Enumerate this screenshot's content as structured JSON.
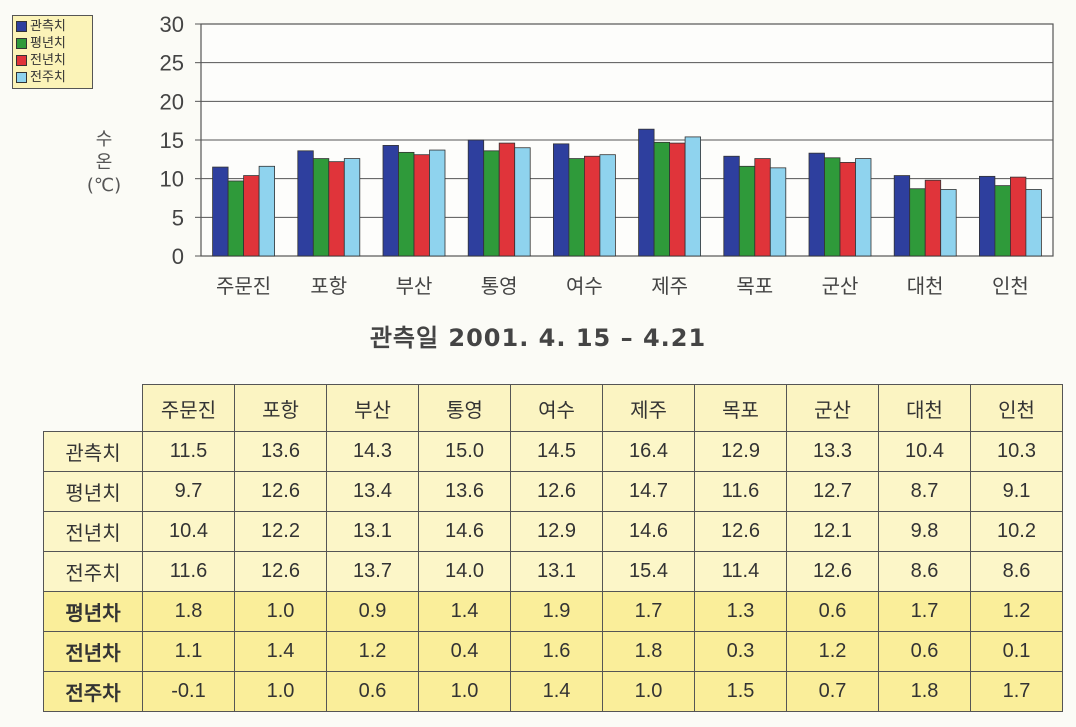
{
  "chart_data": {
    "type": "bar",
    "title": "관측일 2001. 4. 15  –  4.21",
    "ylabel": [
      "수",
      "온",
      "(℃)"
    ],
    "xlabel": "",
    "ylim": [
      0,
      30
    ],
    "yticks": [
      0,
      5,
      10,
      15,
      20,
      25,
      30
    ],
    "grid": true,
    "legend_position": "top-left",
    "categories": [
      "주문진",
      "포항",
      "부산",
      "통영",
      "여수",
      "제주",
      "목포",
      "군산",
      "대천",
      "인천"
    ],
    "series": [
      {
        "name": "관측치",
        "color": "#2e3f9e",
        "values": [
          11.5,
          13.6,
          14.3,
          15.0,
          14.5,
          16.4,
          12.9,
          13.3,
          10.4,
          10.3
        ]
      },
      {
        "name": "평년치",
        "color": "#2f9a3a",
        "values": [
          9.7,
          12.6,
          13.4,
          13.6,
          12.6,
          14.7,
          11.6,
          12.7,
          8.7,
          9.1
        ]
      },
      {
        "name": "전년치",
        "color": "#e0343a",
        "values": [
          10.4,
          12.2,
          13.1,
          14.6,
          12.9,
          14.6,
          12.6,
          12.1,
          9.8,
          10.2
        ]
      },
      {
        "name": "전주치",
        "color": "#8fd3ee",
        "values": [
          11.6,
          12.6,
          13.7,
          14.0,
          13.1,
          15.4,
          11.4,
          12.6,
          8.6,
          8.6
        ]
      }
    ]
  },
  "table": {
    "columns": [
      "주문진",
      "포항",
      "부산",
      "통영",
      "여수",
      "제주",
      "목포",
      "군산",
      "대천",
      "인천"
    ],
    "rows": [
      {
        "label": "관측치",
        "kind": "obs",
        "values": [
          "11.5",
          "13.6",
          "14.3",
          "15.0",
          "14.5",
          "16.4",
          "12.9",
          "13.3",
          "10.4",
          "10.3"
        ]
      },
      {
        "label": "평년치",
        "kind": "obs",
        "values": [
          "9.7",
          "12.6",
          "13.4",
          "13.6",
          "12.6",
          "14.7",
          "11.6",
          "12.7",
          "8.7",
          "9.1"
        ]
      },
      {
        "label": "전년치",
        "kind": "obs",
        "values": [
          "10.4",
          "12.2",
          "13.1",
          "14.6",
          "12.9",
          "14.6",
          "12.6",
          "12.1",
          "9.8",
          "10.2"
        ]
      },
      {
        "label": "전주치",
        "kind": "obs",
        "values": [
          "11.6",
          "12.6",
          "13.7",
          "14.0",
          "13.1",
          "15.4",
          "11.4",
          "12.6",
          "8.6",
          "8.6"
        ]
      },
      {
        "label": "평년차",
        "kind": "diff",
        "values": [
          "1.8",
          "1.0",
          "0.9",
          "1.4",
          "1.9",
          "1.7",
          "1.3",
          "0.6",
          "1.7",
          "1.2"
        ]
      },
      {
        "label": "전년차",
        "kind": "diff",
        "values": [
          "1.1",
          "1.4",
          "1.2",
          "0.4",
          "1.6",
          "1.8",
          "0.3",
          "1.2",
          "0.6",
          "0.1"
        ]
      },
      {
        "label": "전주차",
        "kind": "diff",
        "values": [
          "-0.1",
          "1.0",
          "0.6",
          "1.0",
          "1.4",
          "1.0",
          "1.5",
          "0.7",
          "1.8",
          "1.7"
        ]
      }
    ]
  }
}
